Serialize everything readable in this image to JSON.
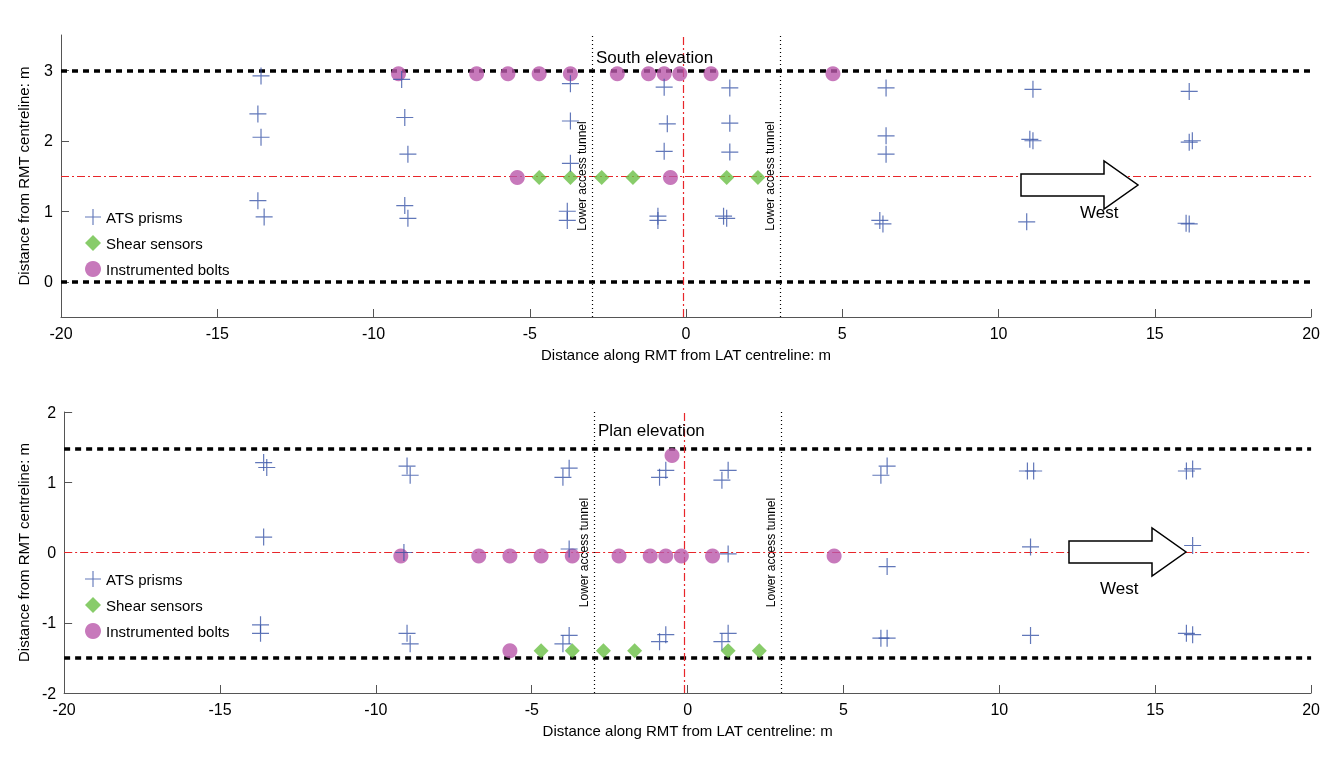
{
  "chart_data": [
    {
      "type": "scatter",
      "title": "South elevation",
      "xlabel": "Distance along RMT from LAT centreline: m",
      "ylabel": "Distance from RMT centreline: m",
      "xlim": [
        -20,
        20
      ],
      "xticks": [
        -20,
        -15,
        -10,
        -5,
        0,
        5,
        10,
        15,
        20
      ],
      "ylim": [
        -0.5,
        3.5
      ],
      "yticks": [
        0,
        1,
        2,
        3
      ],
      "grid": false,
      "legend": "left",
      "annotations": [
        "West"
      ],
      "series": [
        {
          "name": "ATS prisms",
          "color": "#3a55a8",
          "marker": "cross",
          "x": [
            -13.6,
            -13.7,
            -13.6,
            -13.7,
            -13.5,
            -9.1,
            -9.0,
            -8.9,
            -9.0,
            -8.9,
            -3.7,
            -3.7,
            -3.7,
            -3.8,
            -3.8,
            -0.7,
            -0.6,
            -0.7,
            -0.9,
            -0.9,
            1.4,
            1.4,
            1.4,
            1.2,
            1.3,
            6.4,
            6.4,
            6.4,
            6.2,
            6.3,
            11.1,
            11.0,
            11.1,
            10.9,
            16.1,
            16.1,
            16.2,
            16.0,
            16.1
          ],
          "values": [
            2.92,
            2.38,
            2.05,
            1.15,
            0.92,
            2.87,
            2.33,
            1.81,
            1.08,
            0.9,
            2.81,
            2.28,
            1.68,
            1.0,
            0.87,
            2.76,
            2.24,
            1.85,
            0.93,
            0.87,
            2.75,
            2.25,
            1.84,
            0.93,
            0.9,
            2.75,
            2.07,
            1.81,
            0.87,
            0.82,
            2.73,
            2.02,
            2.0,
            0.85,
            2.7,
            1.98,
            2.0,
            0.83,
            0.82
          ]
        },
        {
          "name": "Shear sensors",
          "color": "#6abf45",
          "marker": "diamond",
          "x": [
            -4.7,
            -3.7,
            -2.7,
            -1.7,
            1.3,
            2.3
          ],
          "values": [
            1.48,
            1.48,
            1.48,
            1.48,
            1.48,
            1.48
          ]
        },
        {
          "name": "Instrumented bolts",
          "color": "#b957aa",
          "marker": "circle",
          "x": [
            -9.2,
            -6.7,
            -5.7,
            -4.7,
            -3.7,
            -2.2,
            -1.2,
            -0.7,
            -0.2,
            0.8,
            4.7,
            -5.4,
            -0.5
          ],
          "values": [
            2.95,
            2.95,
            2.95,
            2.95,
            2.95,
            2.95,
            2.95,
            2.95,
            2.95,
            2.95,
            2.95,
            1.48,
            1.48
          ]
        }
      ],
      "ref_lines": [
        {
          "axis": "y",
          "value": 3,
          "color": "#000000",
          "line_style": "dashed"
        },
        {
          "axis": "y",
          "value": 0,
          "color": "#000000",
          "line_style": "dashed"
        },
        {
          "axis": "y",
          "value": 1.5,
          "color": "#e8262a",
          "line_style": "dashdot"
        },
        {
          "axis": "x",
          "value": -0.1,
          "color": "#e8262a",
          "line_style": "dashdot"
        },
        {
          "axis": "x",
          "value": -3.0,
          "color": "#000000",
          "line_style": "dotted",
          "label": "Lower access tunnel"
        },
        {
          "axis": "x",
          "value": 3.0,
          "color": "#000000",
          "line_style": "dotted",
          "label": "Lower access tunnel"
        }
      ]
    },
    {
      "type": "scatter",
      "title": "Plan elevation",
      "xlabel": "Distance along RMT from LAT centreline: m",
      "ylabel": "Distance from RMT centreline: m",
      "xlim": [
        -20,
        20
      ],
      "xticks": [
        -20,
        -15,
        -10,
        -5,
        0,
        5,
        10,
        15,
        20
      ],
      "ylim": [
        -2,
        2
      ],
      "yticks": [
        -2,
        -1,
        0,
        1,
        2
      ],
      "grid": false,
      "legend": "left",
      "annotations": [
        "West"
      ],
      "series": [
        {
          "name": "ATS prisms",
          "color": "#3a55a8",
          "marker": "cross",
          "x": [
            -13.6,
            -13.5,
            -13.6,
            -13.7,
            -13.7,
            -9.0,
            -8.9,
            -9.1,
            -9.0,
            -8.9,
            -4.0,
            -3.8,
            -3.8,
            -3.8,
            -4.0,
            -0.9,
            -0.7,
            -0.7,
            -0.9,
            1.3,
            1.1,
            1.3,
            1.3,
            1.1,
            6.4,
            6.2,
            6.4,
            6.2,
            6.4,
            10.9,
            11.1,
            11.0,
            11.0,
            16.0,
            16.2,
            16.2,
            16.0,
            16.2
          ],
          "values": [
            1.28,
            1.21,
            0.22,
            -1.03,
            -1.15,
            1.23,
            1.1,
            0.0,
            -1.15,
            -1.3,
            1.07,
            1.2,
            0.05,
            -1.18,
            -1.3,
            1.07,
            1.17,
            -1.17,
            -1.27,
            1.17,
            1.03,
            -0.02,
            -1.15,
            -1.27,
            1.23,
            1.1,
            -0.2,
            -1.22,
            -1.22,
            1.16,
            1.16,
            0.08,
            -1.18,
            1.16,
            1.19,
            0.1,
            -1.15,
            -1.17
          ]
        },
        {
          "name": "Shear sensors",
          "color": "#6abf45",
          "marker": "diamond",
          "x": [
            -4.7,
            -3.7,
            -2.7,
            -1.7,
            1.3,
            2.3
          ],
          "values": [
            -1.4,
            -1.4,
            -1.4,
            -1.4,
            -1.4,
            -1.4
          ]
        },
        {
          "name": "Instrumented bolts",
          "color": "#b957aa",
          "marker": "circle",
          "x": [
            -9.2,
            -6.7,
            -5.7,
            -4.7,
            -3.7,
            -2.2,
            -1.2,
            -0.7,
            -0.2,
            0.8,
            4.7,
            -5.7,
            -0.5
          ],
          "values": [
            -0.05,
            -0.05,
            -0.05,
            -0.05,
            -0.05,
            -0.05,
            -0.05,
            -0.05,
            -0.05,
            -0.05,
            -0.05,
            -1.4,
            1.38
          ]
        }
      ],
      "ref_lines": [
        {
          "axis": "y",
          "value": 1.47,
          "color": "#000000",
          "line_style": "dashed"
        },
        {
          "axis": "y",
          "value": -1.5,
          "color": "#000000",
          "line_style": "dashed"
        },
        {
          "axis": "y",
          "value": 0,
          "color": "#e8262a",
          "line_style": "dashdot"
        },
        {
          "axis": "x",
          "value": -0.1,
          "color": "#e8262a",
          "line_style": "dashdot"
        },
        {
          "axis": "x",
          "value": -3.0,
          "color": "#000000",
          "line_style": "dotted",
          "label": "Lower access tunnel"
        },
        {
          "axis": "x",
          "value": 3.0,
          "color": "#000000",
          "line_style": "dotted",
          "label": "Lower access tunnel"
        }
      ]
    }
  ]
}
